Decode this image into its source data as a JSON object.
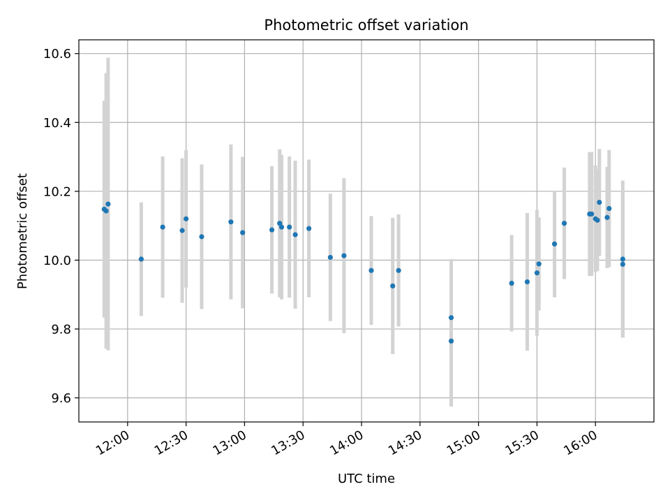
{
  "chart_data": {
    "type": "scatter",
    "title": "Photometric offset variation",
    "xlabel": "UTC time",
    "ylabel": "Photometric offset",
    "x_axis_kind": "time",
    "xlim": [
      "11:35",
      "16:30"
    ],
    "ylim": [
      9.53,
      10.64
    ],
    "grid": true,
    "x_ticks": [
      "12:00",
      "12:30",
      "13:00",
      "13:30",
      "14:00",
      "14:30",
      "15:00",
      "15:30",
      "16:00"
    ],
    "y_ticks": [
      9.6,
      9.8,
      10.0,
      10.2,
      10.4,
      10.6
    ],
    "point_color": "#1f77b4",
    "errorbar_color": "#d3d3d3",
    "series": [
      {
        "points": [
          {
            "t": "11:48",
            "y": 10.148,
            "err": 0.315
          },
          {
            "t": "11:49",
            "y": 10.143,
            "err": 0.4
          },
          {
            "t": "11:50",
            "y": 10.163,
            "err": 0.425
          },
          {
            "t": "12:07",
            "y": 10.003,
            "err": 0.165
          },
          {
            "t": "12:18",
            "y": 10.096,
            "err": 0.205
          },
          {
            "t": "12:28",
            "y": 10.086,
            "err": 0.21
          },
          {
            "t": "12:30",
            "y": 10.12,
            "err": 0.2
          },
          {
            "t": "12:38",
            "y": 10.068,
            "err": 0.21
          },
          {
            "t": "12:53",
            "y": 10.111,
            "err": 0.225
          },
          {
            "t": "12:59",
            "y": 10.08,
            "err": 0.22
          },
          {
            "t": "13:14",
            "y": 10.088,
            "err": 0.185
          },
          {
            "t": "13:18",
            "y": 10.107,
            "err": 0.215
          },
          {
            "t": "13:19",
            "y": 10.096,
            "err": 0.21
          },
          {
            "t": "13:23",
            "y": 10.096,
            "err": 0.205
          },
          {
            "t": "13:26",
            "y": 10.074,
            "err": 0.215
          },
          {
            "t": "13:33",
            "y": 10.092,
            "err": 0.2
          },
          {
            "t": "13:44",
            "y": 10.008,
            "err": 0.185
          },
          {
            "t": "13:51",
            "y": 10.013,
            "err": 0.225
          },
          {
            "t": "14:05",
            "y": 9.97,
            "err": 0.158
          },
          {
            "t": "14:16",
            "y": 9.925,
            "err": 0.198
          },
          {
            "t": "14:19",
            "y": 9.97,
            "err": 0.163
          },
          {
            "t": "14:46",
            "y": 9.833,
            "err": 0.17
          },
          {
            "t": "14:46",
            "y": 9.765,
            "err": 0.19
          },
          {
            "t": "15:17",
            "y": 9.933,
            "err": 0.14
          },
          {
            "t": "15:25",
            "y": 9.937,
            "err": 0.2
          },
          {
            "t": "15:30",
            "y": 9.963,
            "err": 0.183
          },
          {
            "t": "15:31",
            "y": 9.989,
            "err": 0.135
          },
          {
            "t": "15:39",
            "y": 10.047,
            "err": 0.155
          },
          {
            "t": "15:44",
            "y": 10.107,
            "err": 0.162
          },
          {
            "t": "15:57",
            "y": 10.134,
            "err": 0.18
          },
          {
            "t": "15:58",
            "y": 10.134,
            "err": 0.18
          },
          {
            "t": "16:00",
            "y": 10.12,
            "err": 0.155
          },
          {
            "t": "16:01",
            "y": 10.116,
            "err": 0.148
          },
          {
            "t": "16:02",
            "y": 10.168,
            "err": 0.155
          },
          {
            "t": "16:06",
            "y": 10.124,
            "err": 0.147
          },
          {
            "t": "16:07",
            "y": 10.15,
            "err": 0.17
          },
          {
            "t": "16:14",
            "y": 10.003,
            "err": 0.228
          },
          {
            "t": "16:14",
            "y": 9.988,
            "err": 0.213
          }
        ]
      }
    ]
  }
}
